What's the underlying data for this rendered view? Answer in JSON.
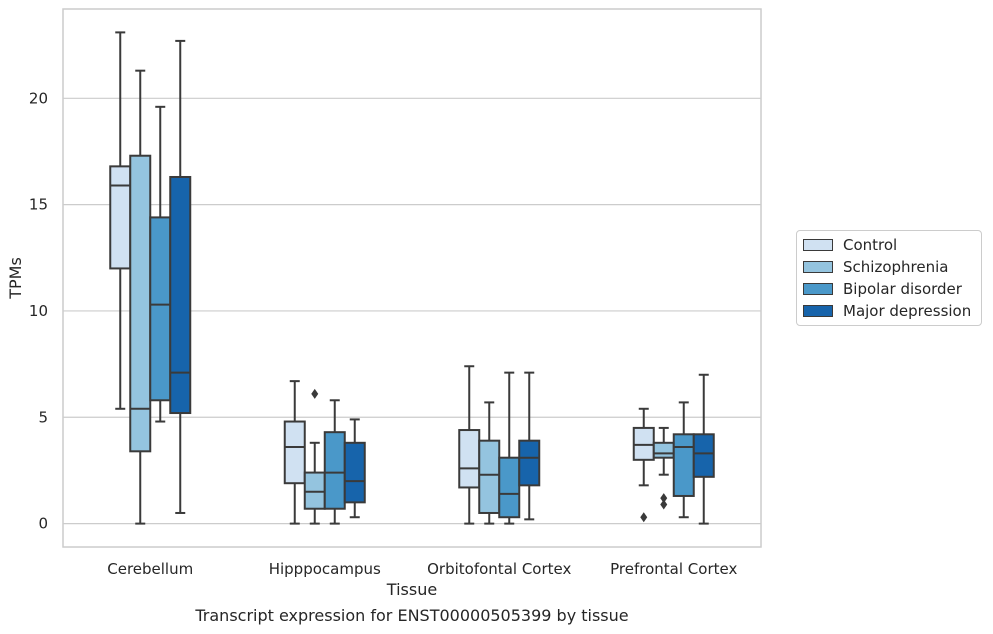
{
  "chart_data": {
    "type": "box",
    "caption": "Transcript expression for ENST00000505399 by tissue",
    "xlabel": "Tissue",
    "ylabel": "TPMs",
    "ylim": [
      -1.1,
      24.2
    ],
    "yticks": [
      0,
      5,
      10,
      15,
      20
    ],
    "ytick_labels": [
      "0",
      "5",
      "10",
      "15",
      "20"
    ],
    "grid": "horizontal",
    "legend_position": "right",
    "categories": [
      "Cerebellum",
      "Hipppocampus",
      "Orbitofontal Cortex",
      "Prefrontal Cortex"
    ],
    "series": [
      {
        "name": "Control",
        "color": "#d0e1f2",
        "boxes": [
          {
            "whislo": 5.4,
            "q1": 12.0,
            "med": 15.9,
            "q3": 16.8,
            "whishi": 23.1,
            "fliers": []
          },
          {
            "whislo": 0.0,
            "q1": 1.9,
            "med": 3.6,
            "q3": 4.8,
            "whishi": 6.7,
            "fliers": []
          },
          {
            "whislo": 0.0,
            "q1": 1.7,
            "med": 2.6,
            "q3": 4.4,
            "whishi": 7.4,
            "fliers": []
          },
          {
            "whislo": 1.8,
            "q1": 3.0,
            "med": 3.7,
            "q3": 4.5,
            "whishi": 5.4,
            "fliers": [
              0.3
            ]
          }
        ]
      },
      {
        "name": "Schizophrenia",
        "color": "#94c4df",
        "boxes": [
          {
            "whislo": 0.0,
            "q1": 3.4,
            "med": 5.4,
            "q3": 17.3,
            "whishi": 21.3,
            "fliers": []
          },
          {
            "whislo": 0.0,
            "q1": 0.7,
            "med": 1.5,
            "q3": 2.4,
            "whishi": 3.8,
            "fliers": [
              6.1
            ]
          },
          {
            "whislo": 0.0,
            "q1": 0.5,
            "med": 2.3,
            "q3": 3.9,
            "whishi": 5.7,
            "fliers": []
          },
          {
            "whislo": 2.3,
            "q1": 3.1,
            "med": 3.3,
            "q3": 3.8,
            "whishi": 4.5,
            "fliers": [
              0.9,
              1.2
            ]
          }
        ]
      },
      {
        "name": "Bipolar disorder",
        "color": "#4a98c9",
        "boxes": [
          {
            "whislo": 4.8,
            "q1": 5.8,
            "med": 10.3,
            "q3": 14.4,
            "whishi": 19.6,
            "fliers": []
          },
          {
            "whislo": 0.0,
            "q1": 0.7,
            "med": 2.4,
            "q3": 4.3,
            "whishi": 5.8,
            "fliers": []
          },
          {
            "whislo": 0.0,
            "q1": 0.3,
            "med": 1.4,
            "q3": 3.1,
            "whishi": 7.1,
            "fliers": []
          },
          {
            "whislo": 0.3,
            "q1": 1.3,
            "med": 3.6,
            "q3": 4.2,
            "whishi": 5.7,
            "fliers": []
          }
        ]
      },
      {
        "name": "Major depression",
        "color": "#1764ab",
        "boxes": [
          {
            "whislo": 0.5,
            "q1": 5.2,
            "med": 7.1,
            "q3": 16.3,
            "whishi": 22.7,
            "fliers": []
          },
          {
            "whislo": 0.3,
            "q1": 1.0,
            "med": 2.0,
            "q3": 3.8,
            "whishi": 4.9,
            "fliers": []
          },
          {
            "whislo": 0.2,
            "q1": 1.8,
            "med": 3.1,
            "q3": 3.9,
            "whishi": 7.1,
            "fliers": []
          },
          {
            "whislo": 0.0,
            "q1": 2.2,
            "med": 3.3,
            "q3": 4.2,
            "whishi": 7.0,
            "fliers": []
          }
        ]
      }
    ]
  }
}
